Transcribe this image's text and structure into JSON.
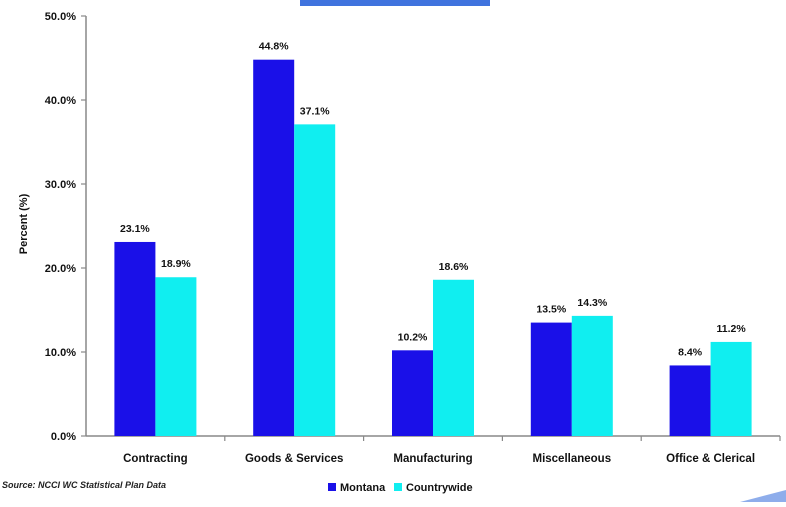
{
  "chart_data": {
    "type": "bar",
    "title": "",
    "xlabel": "",
    "ylabel": "Percent (%)",
    "ylim": [
      0,
      50
    ],
    "y_ticks": [
      "0.0%",
      "10.0%",
      "20.0%",
      "30.0%",
      "40.0%",
      "50.0%"
    ],
    "categories": [
      "Contracting",
      "Goods & Services",
      "Manufacturing",
      "Miscellaneous",
      "Office & Clerical"
    ],
    "series": [
      {
        "name": "Montana",
        "color": "#1a10e8",
        "values": [
          23.1,
          44.8,
          10.2,
          13.5,
          8.4
        ],
        "labels": [
          "23.1%",
          "44.8%",
          "10.2%",
          "13.5%",
          "8.4%"
        ]
      },
      {
        "name": "Countrywide",
        "color": "#10eef0",
        "values": [
          18.9,
          37.1,
          18.6,
          14.3,
          11.2
        ],
        "labels": [
          "18.9%",
          "37.1%",
          "18.6%",
          "14.3%",
          "11.2%"
        ]
      }
    ],
    "grid": false,
    "legend_position": "bottom"
  },
  "source_note": "Source: NCCI WC Statistical Plan Data",
  "title_accent_color": "#1e5bd8"
}
